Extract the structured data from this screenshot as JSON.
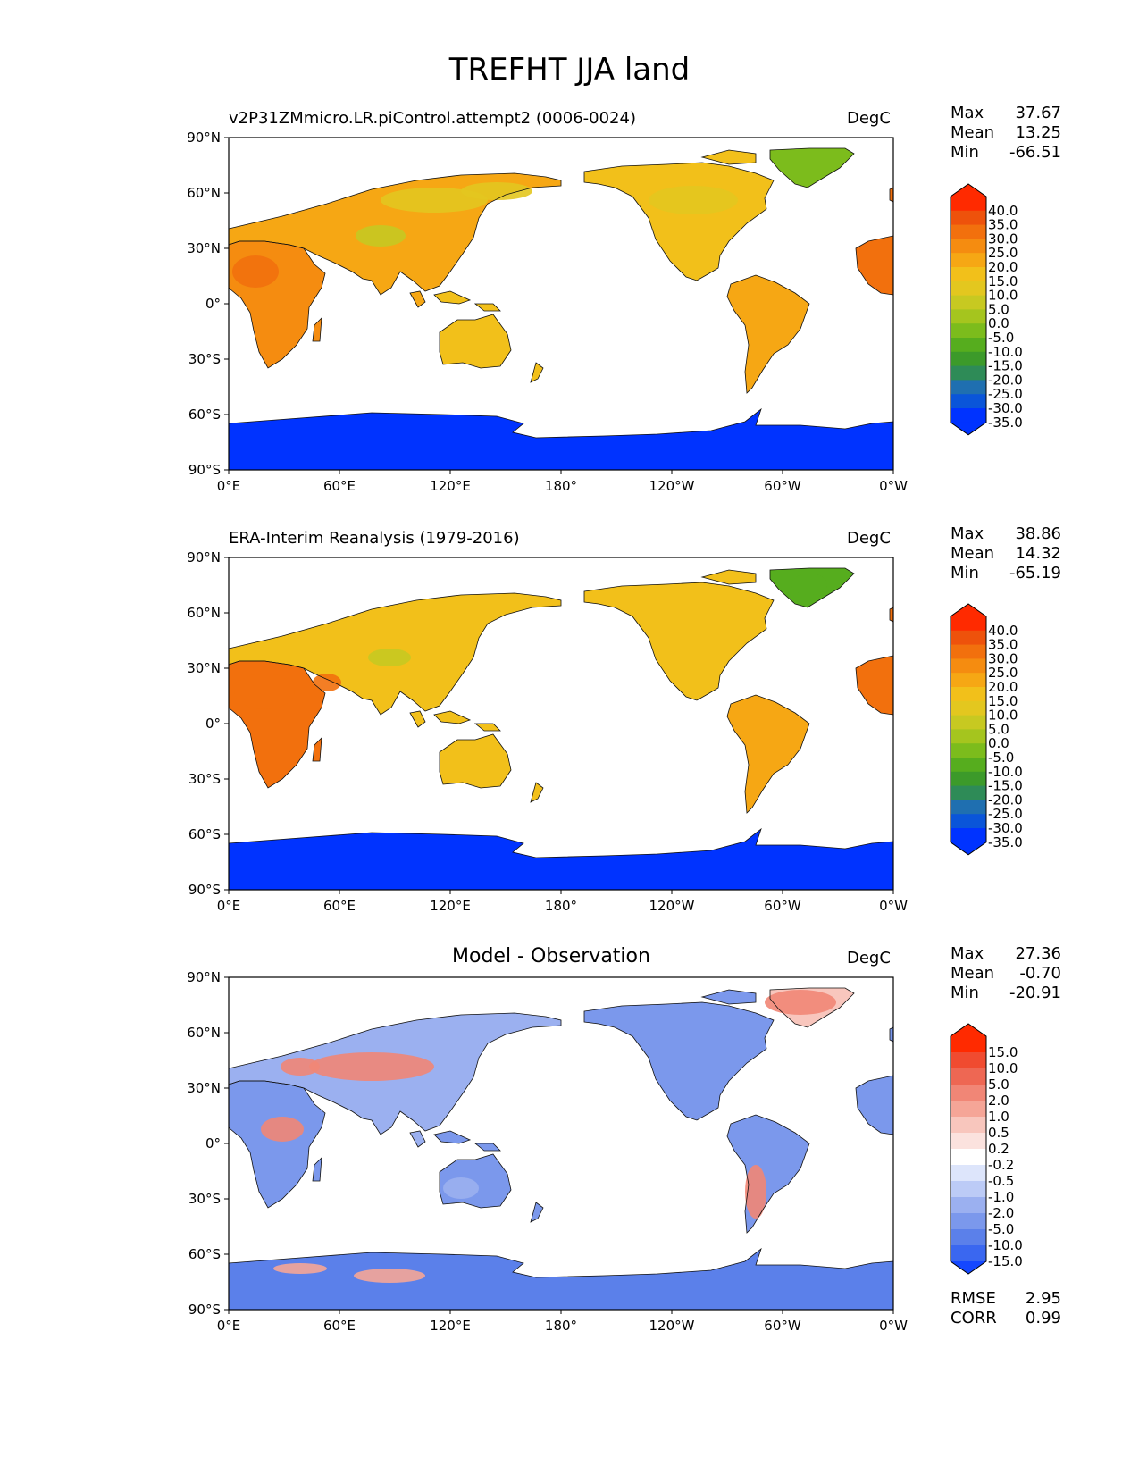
{
  "figure_title": "TREFHT JJA land",
  "colors": {
    "absolute": [
      "#0033ff",
      "#0a55d9",
      "#1f6fb0",
      "#2e8b57",
      "#3c9a2a",
      "#56ad1e",
      "#7cbc1c",
      "#a5c51e",
      "#c7c921",
      "#e3c71f",
      "#f2c01a",
      "#f6a714",
      "#f58c10",
      "#f2700d",
      "#ee520b",
      "#ff2a00"
    ],
    "difference": [
      "#1447ff",
      "#3a67f0",
      "#5b80ea",
      "#7b98ec",
      "#9bb0f0",
      "#bccbf6",
      "#dde5fb",
      "#ffffff",
      "#fbe2de",
      "#f8c6bd",
      "#f5a597",
      "#f18676",
      "#ee6753",
      "#f04b30",
      "#ff2a00"
    ]
  },
  "chart_data": [
    {
      "type": "heatmap",
      "title": "v2P31ZMmicro.LR.piControl.attempt2 (0006-0024)",
      "units": "DegC",
      "stats": {
        "max": "37.67",
        "mean": "13.25",
        "min": "-66.51"
      },
      "colorbar_ticks": [
        "40.0",
        "35.0",
        "30.0",
        "25.0",
        "20.0",
        "15.0",
        "10.0",
        "5.0",
        "0.0",
        "-5.0",
        "-10.0",
        "-15.0",
        "-20.0",
        "-25.0",
        "-30.0",
        "-35.0"
      ],
      "xticks": [
        "0°E",
        "60°E",
        "120°E",
        "180°",
        "120°W",
        "60°W",
        "0°W"
      ],
      "yticks": [
        "90°N",
        "60°N",
        "30°N",
        "0°",
        "30°S",
        "60°S",
        "90°S"
      ],
      "xlim": [
        0,
        360
      ],
      "ylim": [
        -90,
        90
      ]
    },
    {
      "type": "heatmap",
      "title": "ERA-Interim Reanalysis (1979-2016)",
      "units": "DegC",
      "stats": {
        "max": "38.86",
        "mean": "14.32",
        "min": "-65.19"
      },
      "colorbar_ticks": [
        "40.0",
        "35.0",
        "30.0",
        "25.0",
        "20.0",
        "15.0",
        "10.0",
        "5.0",
        "0.0",
        "-5.0",
        "-10.0",
        "-15.0",
        "-20.0",
        "-25.0",
        "-30.0",
        "-35.0"
      ],
      "xticks": [
        "0°E",
        "60°E",
        "120°E",
        "180°",
        "120°W",
        "60°W",
        "0°W"
      ],
      "yticks": [
        "90°N",
        "60°N",
        "30°N",
        "0°",
        "30°S",
        "60°S",
        "90°S"
      ],
      "xlim": [
        0,
        360
      ],
      "ylim": [
        -90,
        90
      ]
    },
    {
      "type": "heatmap",
      "title": "Model - Observation",
      "units": "DegC",
      "stats": {
        "max": "27.36",
        "mean": "-0.70",
        "min": "-20.91"
      },
      "colorbar_ticks": [
        "15.0",
        "10.0",
        "5.0",
        "2.0",
        "1.0",
        "0.5",
        "0.2",
        "-0.2",
        "-0.5",
        "-1.0",
        "-2.0",
        "-5.0",
        "-10.0",
        "-15.0"
      ],
      "xticks": [
        "0°E",
        "60°E",
        "120°E",
        "180°",
        "120°W",
        "60°W",
        "0°W"
      ],
      "yticks": [
        "90°N",
        "60°N",
        "30°N",
        "0°",
        "30°S",
        "60°S",
        "90°S"
      ],
      "xlim": [
        0,
        360
      ],
      "ylim": [
        -90,
        90
      ],
      "metrics": {
        "rmse": "2.95",
        "corr": "0.99"
      }
    }
  ],
  "labels": {
    "max": "Max",
    "mean": "Mean",
    "min": "Min",
    "rmse": "RMSE",
    "corr": "CORR"
  }
}
